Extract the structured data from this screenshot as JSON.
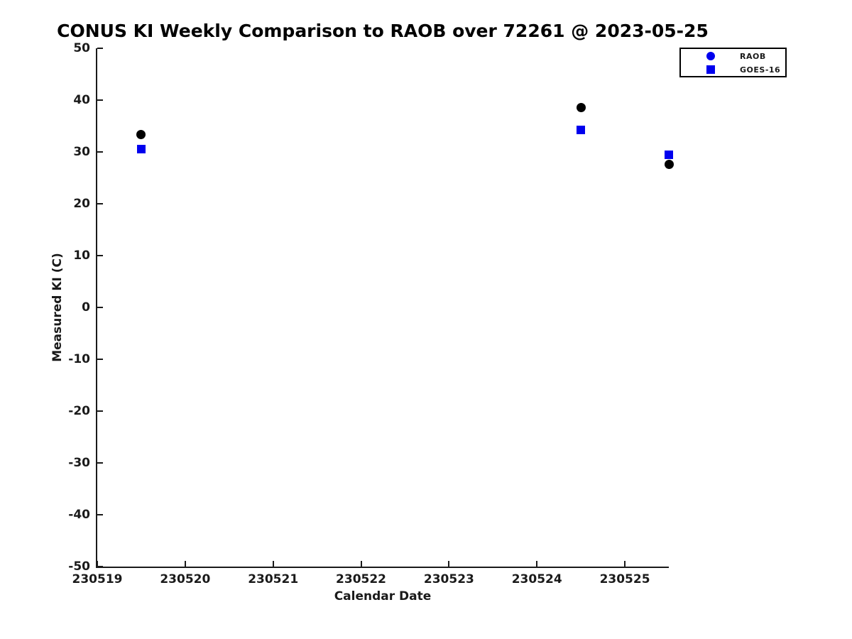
{
  "chart_data": {
    "type": "scatter",
    "title": "CONUS KI Weekly Comparison to RAOB over 72261 @ 2023-05-25",
    "xlabel": "Calendar Date",
    "ylabel": "Measured KI (C)",
    "xlim": [
      230519,
      230525.5
    ],
    "ylim": [
      -50,
      50
    ],
    "x_ticks": [
      230519,
      230520,
      230521,
      230522,
      230523,
      230524,
      230525
    ],
    "y_ticks": [
      50,
      40,
      30,
      20,
      10,
      0,
      -10,
      -20,
      -30,
      -40,
      -50
    ],
    "grid": false,
    "axis_color": "#1a1a1a",
    "legend_position": "top-right",
    "series": [
      {
        "name": "RAOB",
        "marker": "circle",
        "marker_size": 13,
        "color": "#000000",
        "legend_marker_color": "#0000ee",
        "points": [
          [
            230519.5,
            33.3
          ],
          [
            230524.5,
            38.5
          ],
          [
            230525.5,
            27.6
          ]
        ]
      },
      {
        "name": "GOES-16",
        "marker": "square",
        "marker_size": 12,
        "color": "#0000ee",
        "legend_marker_color": "#0000ee",
        "points": [
          [
            230519.5,
            30.6
          ],
          [
            230524.5,
            34.2
          ],
          [
            230525.5,
            29.5
          ]
        ]
      }
    ]
  }
}
